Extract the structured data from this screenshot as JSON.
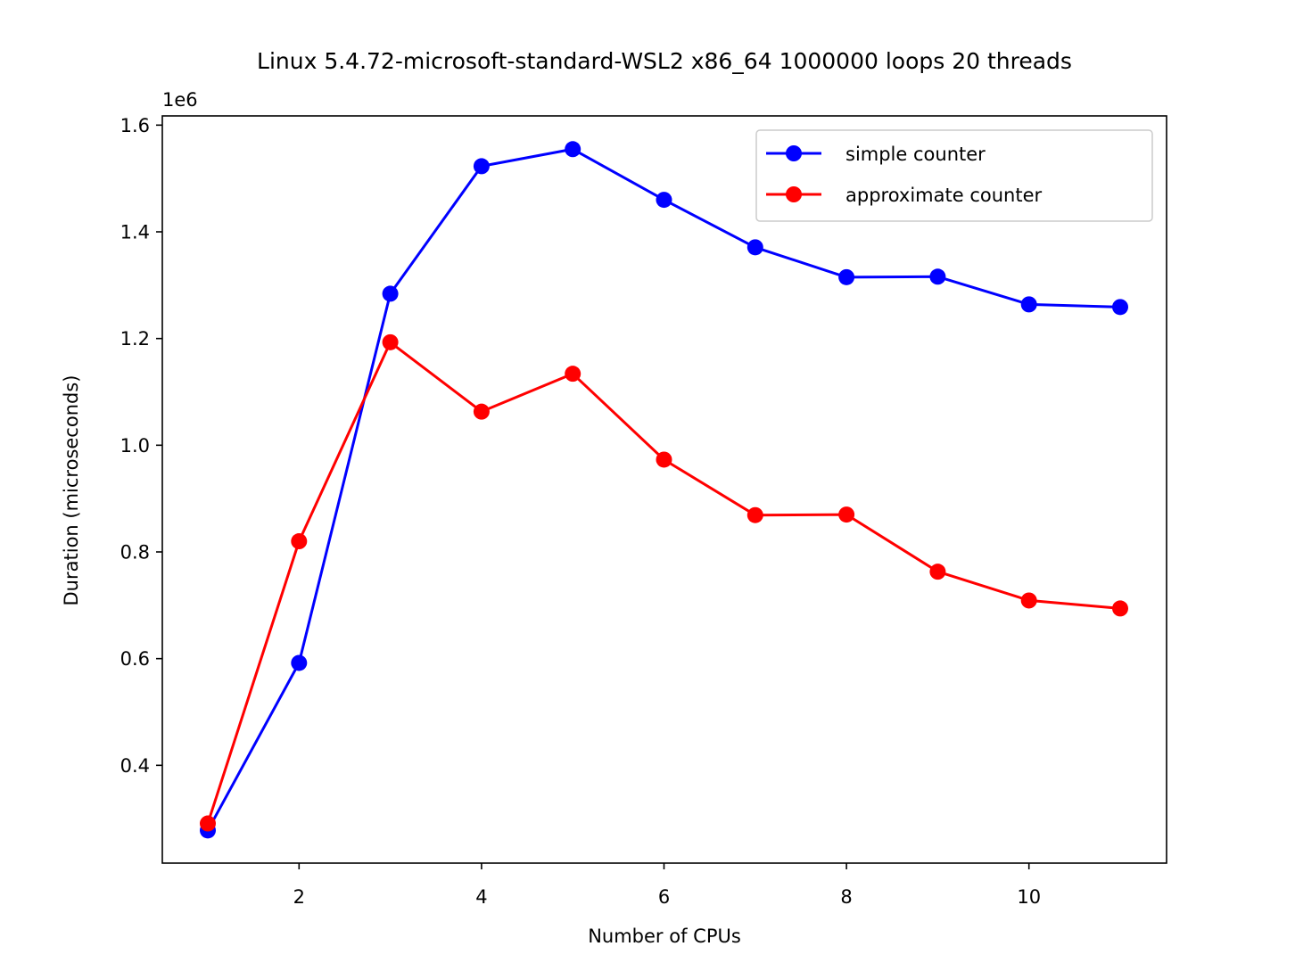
{
  "chart_data": {
    "type": "line",
    "title": "Linux 5.4.72-microsoft-standard-WSL2 x86_64 1000000 loops 20 threads",
    "xlabel": "Number of CPUs",
    "ylabel": "Duration (microseconds)",
    "y_offset_label": "1e6",
    "x": [
      1,
      2,
      3,
      4,
      5,
      6,
      7,
      8,
      9,
      10,
      11
    ],
    "xlim": [
      0.5,
      11.5
    ],
    "ylim": [
      0.2,
      1.6
    ],
    "x_ticks": [
      2,
      4,
      6,
      8,
      10
    ],
    "x_tick_labels": [
      "2",
      "4",
      "6",
      "8",
      "10"
    ],
    "y_ticks": [
      0.4,
      0.6,
      0.8,
      1.0,
      1.2,
      1.4,
      1.6
    ],
    "y_tick_labels": [
      "0.4",
      "0.6",
      "0.8",
      "1.0",
      "1.2",
      "1.4",
      "1.6"
    ],
    "grid": false,
    "legend_position": "top-right",
    "series": [
      {
        "name": "simple counter",
        "color": "#0000ff",
        "marker": "circle",
        "values": [
          0.278,
          0.592,
          1.284,
          1.523,
          1.555,
          1.46,
          1.371,
          1.315,
          1.316,
          1.264,
          1.259
        ]
      },
      {
        "name": "approximate counter",
        "color": "#ff0000",
        "marker": "circle",
        "values": [
          0.291,
          0.82,
          1.193,
          1.063,
          1.134,
          0.973,
          0.869,
          0.87,
          0.763,
          0.709,
          0.694
        ]
      }
    ]
  }
}
